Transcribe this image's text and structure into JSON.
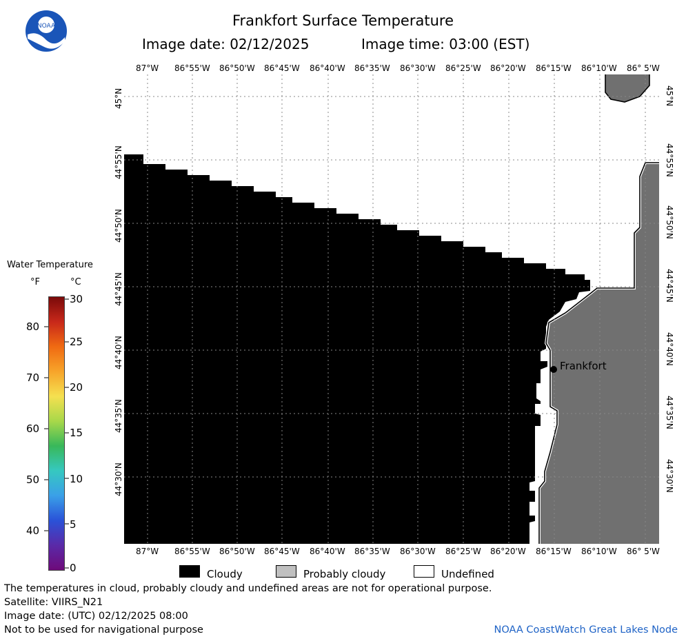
{
  "header": {
    "title": "Frankfort Surface Temperature",
    "image_date": "Image date: 02/12/2025",
    "image_time": "Image time: 03:00 (EST)"
  },
  "logo": {
    "text": "NOAA",
    "icon": "noaa-logo-icon"
  },
  "map": {
    "lon_labels": [
      "87°W",
      "86°55'W",
      "86°50'W",
      "86°45'W",
      "86°40'W",
      "86°35'W",
      "86°30'W",
      "86°25'W",
      "86°20'W",
      "86°15'W",
      "86°10'W",
      "86° 5'W"
    ],
    "lat_labels": [
      "45°N",
      "44°55'N",
      "44°50'N",
      "44°45'N",
      "44°40'N",
      "44°35'N",
      "44°30'N"
    ],
    "city_label": "Frankfort",
    "colors": {
      "cloudy": "#000000",
      "probably_cloudy": "#c0c0c0",
      "land": "#707070",
      "undefined": "#ffffff",
      "grid": "#808080"
    }
  },
  "legend": {
    "title": "Water Temperature",
    "unit_f": "°F",
    "unit_c": "°C",
    "f_ticks": [
      "80",
      "70",
      "60",
      "50",
      "40"
    ],
    "c_ticks": [
      "30",
      "25",
      "20",
      "15",
      "10",
      "5",
      "0"
    ],
    "gradient": [
      "#7a0a0a",
      "#c8281a",
      "#f06a12",
      "#f7a42a",
      "#f5e050",
      "#a8d84a",
      "#38b85a",
      "#36c8c0",
      "#3aa0e8",
      "#2a52d8",
      "#5a2aa8",
      "#6e0a7a"
    ]
  },
  "key": {
    "cloudy": "Cloudy",
    "probably_cloudy": "Probably cloudy",
    "undefined": "Undefined"
  },
  "footer": {
    "note": "The temperatures in cloud, probably cloudy and undefined areas are not for operational purpose.",
    "satellite": "Satellite: VIIRS_N21",
    "utc_date": "Image date: (UTC) 02/12/2025  08:00",
    "nav_warning": "Not to be used for navigational purpose",
    "credit": "NOAA CoastWatch Great Lakes Node"
  }
}
